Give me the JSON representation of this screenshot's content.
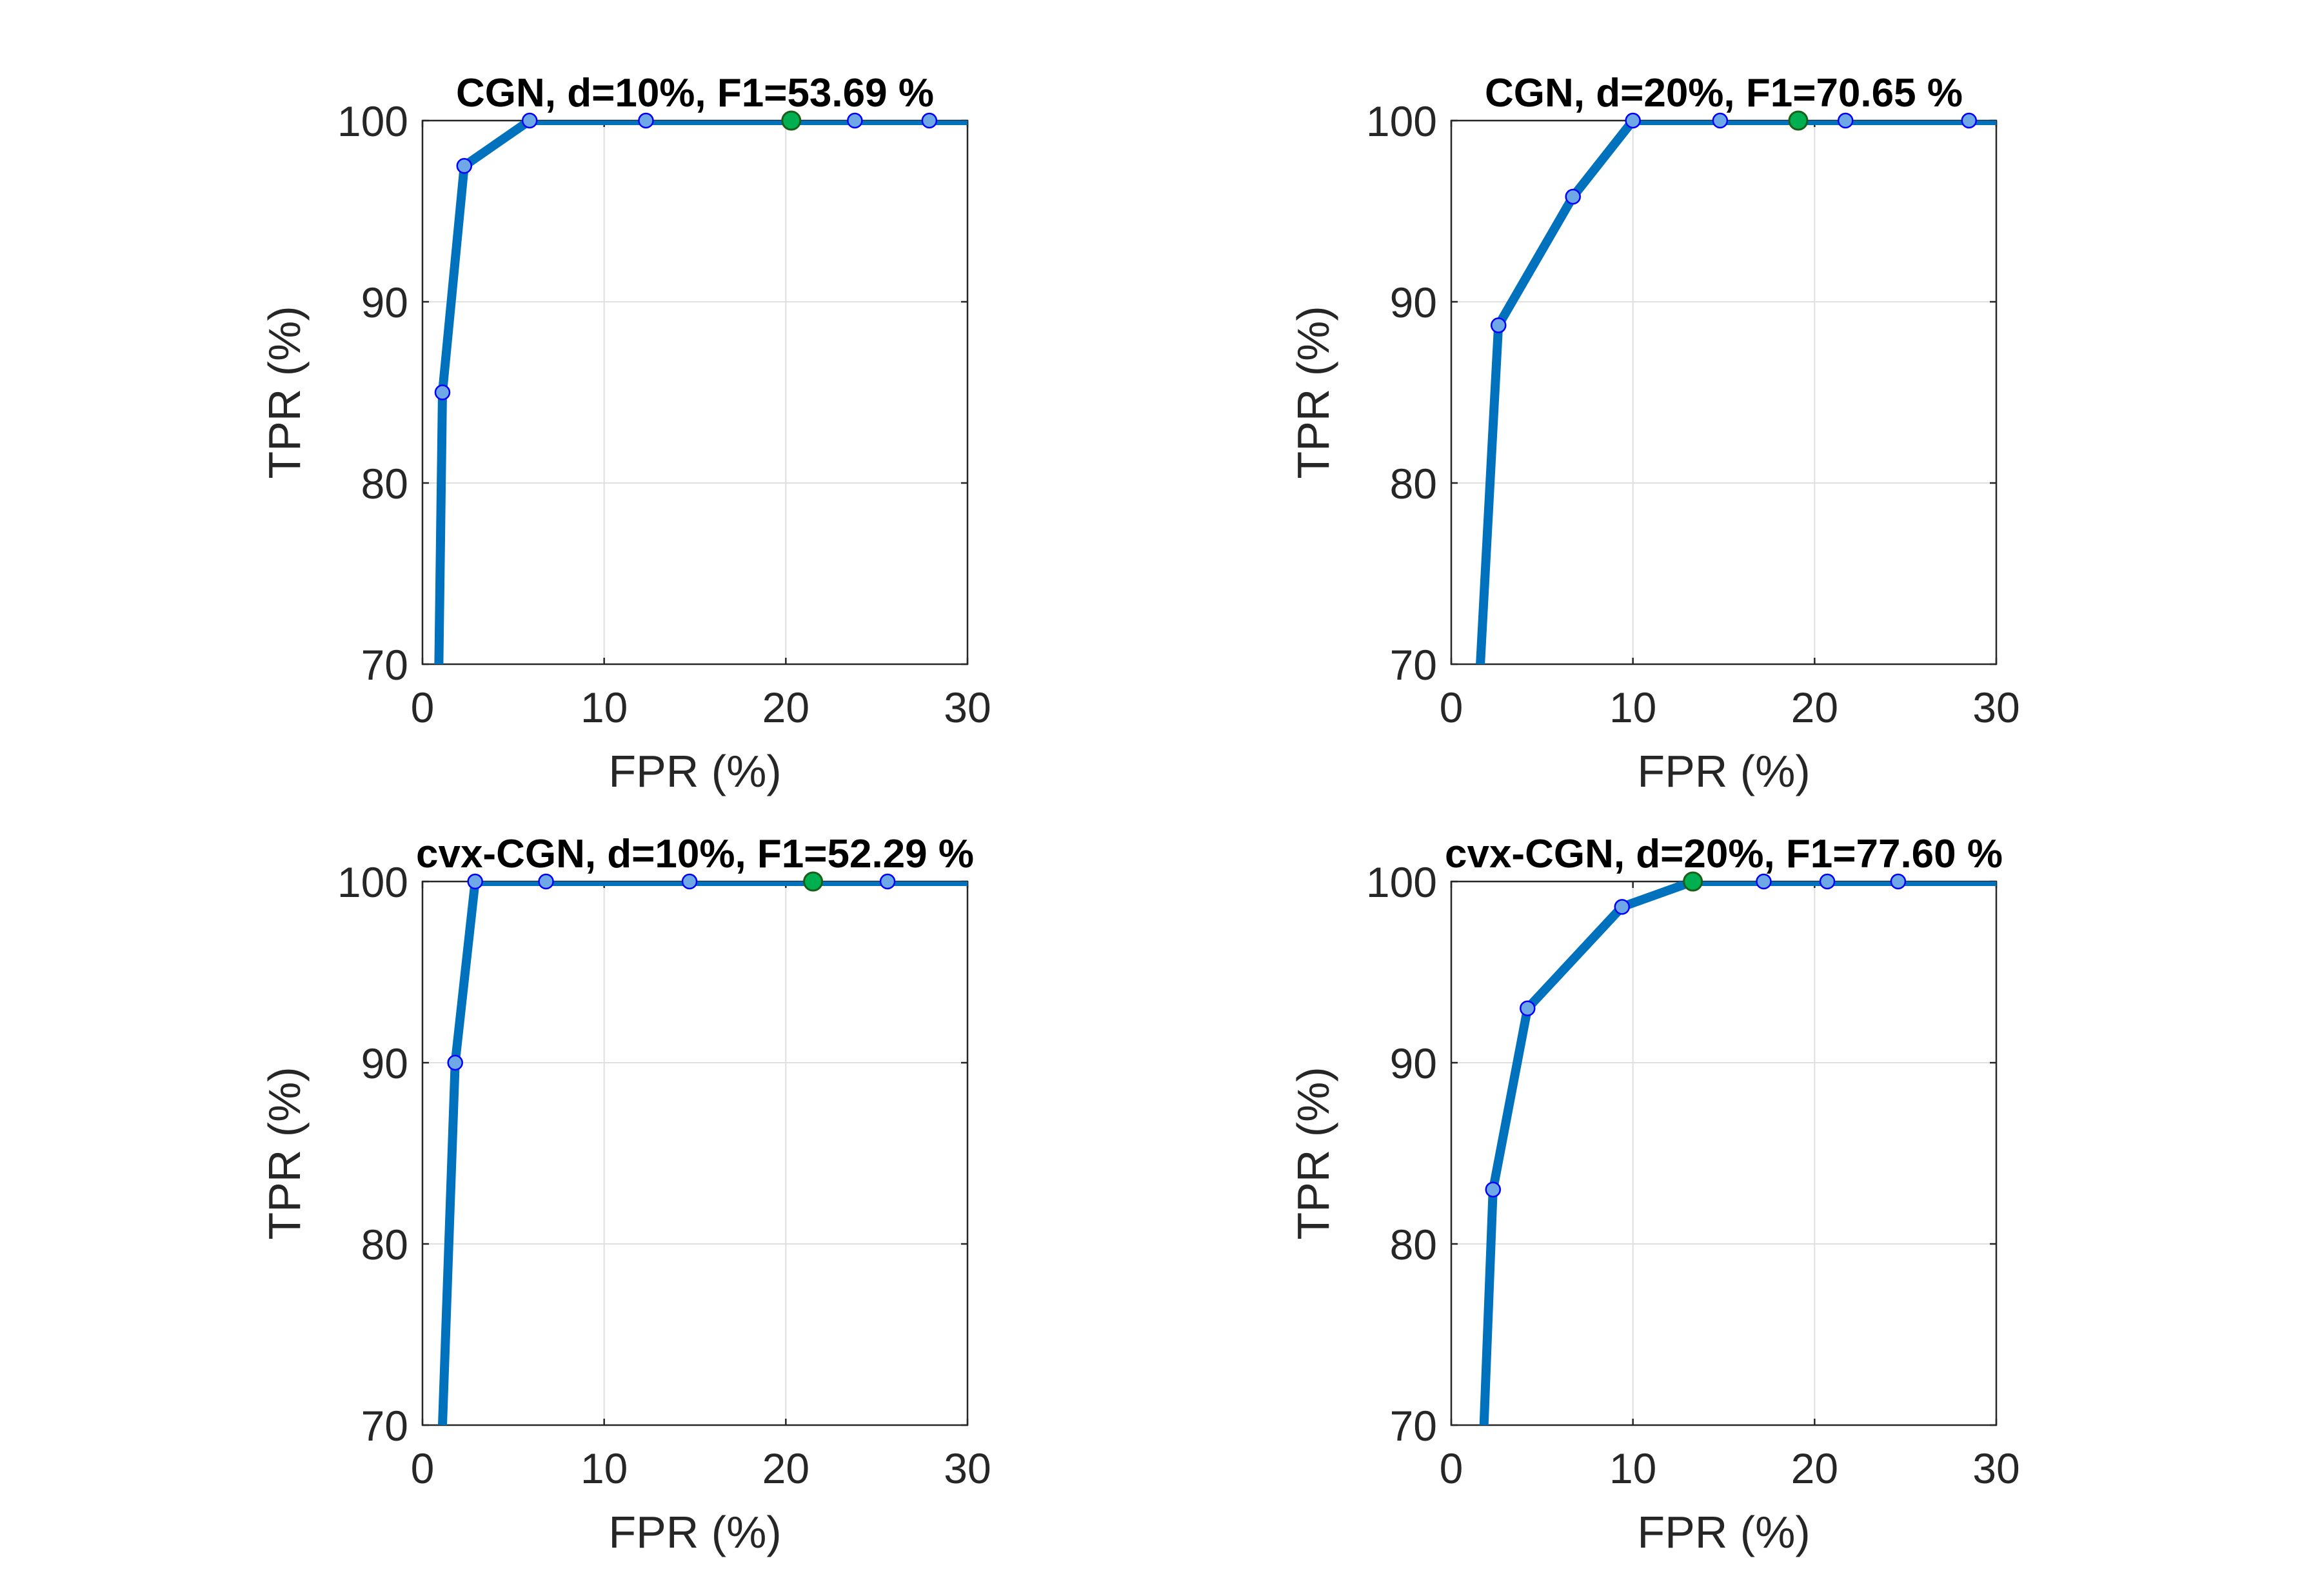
{
  "chart_data": [
    {
      "type": "line",
      "title": "CGN, d=10%, F1=53.69 %",
      "xlabel": "FPR (%)",
      "ylabel": "TPR (%)",
      "xlim": [
        0,
        30
      ],
      "ylim": [
        70,
        100
      ],
      "xticks": [
        "0",
        "10",
        "20",
        "30"
      ],
      "yticks": [
        "70",
        "80",
        "90",
        "100"
      ],
      "grid": true,
      "series": [
        {
          "values": [
            [
              0.9,
              70
            ],
            [
              1.1,
              85
            ],
            [
              2.3,
              97.5
            ],
            [
              5.9,
              100
            ],
            [
              12.3,
              100
            ],
            [
              20.3,
              100
            ],
            [
              23.8,
              100
            ],
            [
              27.9,
              100
            ],
            [
              30,
              100
            ]
          ]
        }
      ],
      "markers": [
        [
          1.1,
          85
        ],
        [
          2.3,
          97.5
        ],
        [
          5.9,
          100
        ],
        [
          12.3,
          100
        ],
        [
          23.8,
          100
        ],
        [
          27.9,
          100
        ]
      ],
      "highlight": [
        20.3,
        100
      ],
      "colors": {
        "line": "#0072BD",
        "marker": "#0000FF",
        "highlight": "#00B050"
      }
    },
    {
      "type": "line",
      "title": "CGN, d=20%, F1=70.65 %",
      "xlabel": "FPR (%)",
      "ylabel": "TPR (%)",
      "xlim": [
        0,
        30
      ],
      "ylim": [
        70,
        100
      ],
      "xticks": [
        "0",
        "10",
        "20",
        "30"
      ],
      "yticks": [
        "70",
        "80",
        "90",
        "100"
      ],
      "grid": true,
      "series": [
        {
          "values": [
            [
              1.6,
              70
            ],
            [
              2.6,
              88.7
            ],
            [
              6.7,
              95.8
            ],
            [
              10.0,
              100
            ],
            [
              14.8,
              100
            ],
            [
              19.1,
              100
            ],
            [
              21.7,
              100
            ],
            [
              28.5,
              100
            ],
            [
              30,
              100
            ]
          ]
        }
      ],
      "markers": [
        [
          2.6,
          88.7
        ],
        [
          6.7,
          95.8
        ],
        [
          10.0,
          100
        ],
        [
          14.8,
          100
        ],
        [
          21.7,
          100
        ],
        [
          28.5,
          100
        ]
      ],
      "highlight": [
        19.1,
        100
      ],
      "colors": {
        "line": "#0072BD",
        "marker": "#0000FF",
        "highlight": "#00B050"
      }
    },
    {
      "type": "line",
      "title": "cvx-CGN, d=10%, F1=52.29 %",
      "xlabel": "FPR (%)",
      "ylabel": "TPR (%)",
      "xlim": [
        0,
        30
      ],
      "ylim": [
        70,
        100
      ],
      "xticks": [
        "0",
        "10",
        "20",
        "30"
      ],
      "yticks": [
        "70",
        "80",
        "90",
        "100"
      ],
      "grid": true,
      "series": [
        {
          "values": [
            [
              1.1,
              70
            ],
            [
              1.8,
              90
            ],
            [
              2.9,
              100
            ],
            [
              6.8,
              100
            ],
            [
              14.7,
              100
            ],
            [
              21.5,
              100
            ],
            [
              25.6,
              100
            ],
            [
              30,
              100
            ]
          ]
        }
      ],
      "markers": [
        [
          1.8,
          90
        ],
        [
          2.9,
          100
        ],
        [
          6.8,
          100
        ],
        [
          14.7,
          100
        ],
        [
          25.6,
          100
        ]
      ],
      "highlight": [
        21.5,
        100
      ],
      "colors": {
        "line": "#0072BD",
        "marker": "#0000FF",
        "highlight": "#00B050"
      }
    },
    {
      "type": "line",
      "title": "cvx-CGN, d=20%, F1=77.60 %",
      "xlabel": "FPR (%)",
      "ylabel": "TPR (%)",
      "xlim": [
        0,
        30
      ],
      "ylim": [
        70,
        100
      ],
      "xticks": [
        "0",
        "10",
        "20",
        "30"
      ],
      "yticks": [
        "70",
        "80",
        "90",
        "100"
      ],
      "grid": true,
      "series": [
        {
          "values": [
            [
              1.8,
              70
            ],
            [
              2.3,
              83
            ],
            [
              4.2,
              93
            ],
            [
              9.4,
              98.6
            ],
            [
              13.3,
              100
            ],
            [
              17.2,
              100
            ],
            [
              20.7,
              100
            ],
            [
              24.6,
              100
            ],
            [
              30,
              100
            ]
          ]
        }
      ],
      "markers": [
        [
          2.3,
          83
        ],
        [
          4.2,
          93
        ],
        [
          9.4,
          98.6
        ],
        [
          17.2,
          100
        ],
        [
          20.7,
          100
        ],
        [
          24.6,
          100
        ]
      ],
      "highlight": [
        13.3,
        100
      ],
      "colors": {
        "line": "#0072BD",
        "marker": "#0000FF",
        "highlight": "#00B050"
      }
    }
  ]
}
